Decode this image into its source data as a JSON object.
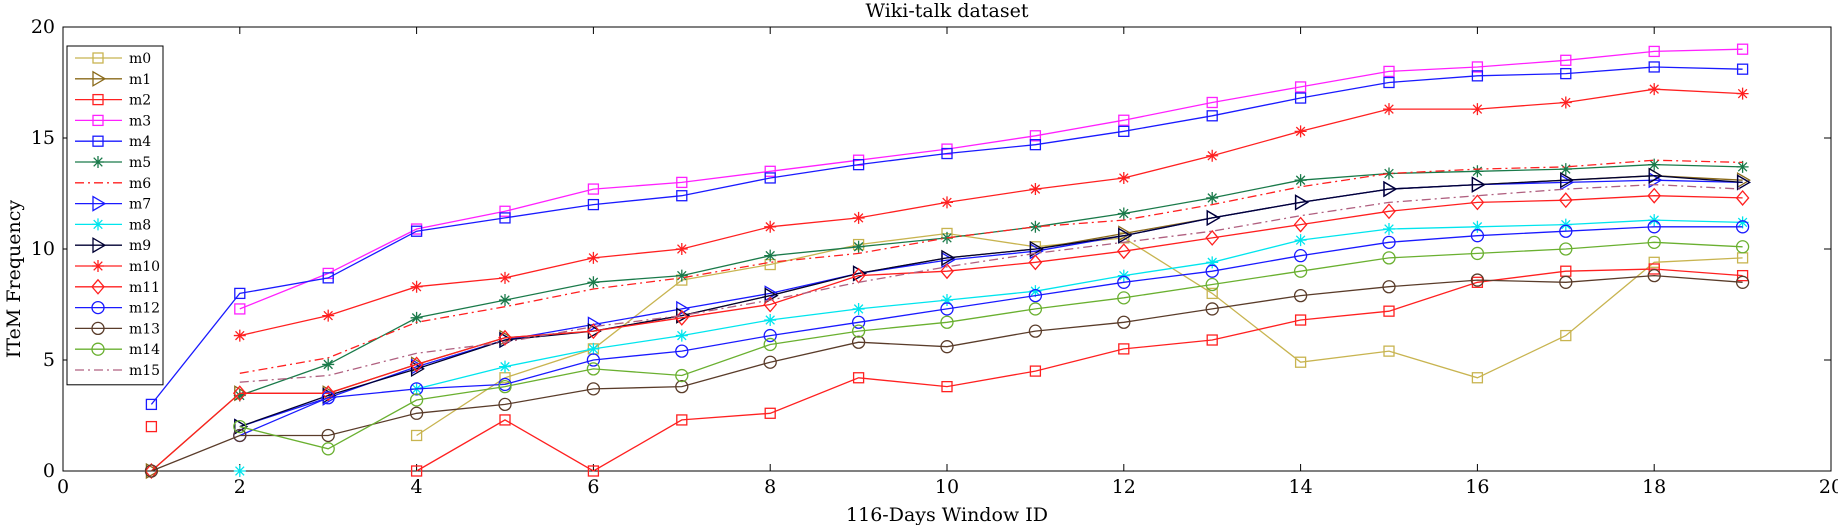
{
  "chart_data": {
    "type": "line",
    "title": "Wiki-talk dataset",
    "xlabel": "116-Days Window ID",
    "ylabel": "ITeM Frequency",
    "xlim": [
      0,
      20
    ],
    "ylim": [
      0,
      20
    ],
    "xticks": [
      0,
      2,
      4,
      6,
      8,
      10,
      12,
      14,
      16,
      18,
      20
    ],
    "yticks": [
      0,
      5,
      10,
      15,
      20
    ],
    "legend_position": "top-left",
    "series": [
      {
        "name": "m0",
        "color": "#c8b450",
        "marker": "square",
        "dash": "solid",
        "points": [
          [
            4,
            1.6
          ],
          [
            5,
            4.2
          ],
          [
            6,
            5.5
          ],
          [
            7,
            8.6
          ],
          [
            8,
            9.3
          ],
          [
            9,
            10.2
          ],
          [
            10,
            10.7
          ],
          [
            11,
            10.1
          ],
          [
            12,
            10.5
          ],
          [
            13,
            8.0
          ],
          [
            14,
            4.9
          ],
          [
            15,
            5.4
          ],
          [
            16,
            4.2
          ],
          [
            17,
            6.1
          ],
          [
            18,
            9.4
          ],
          [
            19,
            9.6
          ]
        ]
      },
      {
        "name": "m1",
        "color": "#8a6a1a",
        "marker": "tri-right",
        "dash": "solid",
        "points": [
          [
            1,
            0.0
          ],
          [
            2,
            3.5
          ],
          [
            3,
            3.5
          ],
          [
            4,
            4.8
          ],
          [
            5,
            6.0
          ],
          [
            6,
            6.3
          ],
          [
            7,
            7.0
          ],
          [
            8,
            7.9
          ],
          [
            9,
            8.9
          ],
          [
            10,
            9.6
          ],
          [
            11,
            10.0
          ],
          [
            12,
            10.7
          ],
          [
            13,
            11.4
          ],
          [
            14,
            12.1
          ],
          [
            15,
            12.7
          ],
          [
            16,
            12.9
          ],
          [
            17,
            13.1
          ],
          [
            18,
            13.3
          ],
          [
            19,
            13.1
          ]
        ]
      },
      {
        "name": "m2",
        "color": "#ff2020",
        "marker": "square",
        "dash": "solid",
        "points": [
          [
            1,
            2.0
          ],
          [
            null,
            null
          ],
          [
            4,
            0.0
          ],
          [
            5,
            2.3
          ],
          [
            6,
            0.0
          ],
          [
            7,
            2.3
          ],
          [
            8,
            2.6
          ],
          [
            9,
            4.2
          ],
          [
            10,
            3.8
          ],
          [
            11,
            4.5
          ],
          [
            12,
            5.5
          ],
          [
            13,
            5.9
          ],
          [
            14,
            6.8
          ],
          [
            15,
            7.2
          ],
          [
            16,
            8.5
          ],
          [
            17,
            9.0
          ],
          [
            18,
            9.1
          ],
          [
            19,
            8.8
          ]
        ]
      },
      {
        "name": "m3",
        "color": "#ff20ff",
        "marker": "square",
        "dash": "solid",
        "points": [
          [
            2,
            7.3
          ],
          [
            3,
            8.9
          ],
          [
            4,
            10.9
          ],
          [
            5,
            11.7
          ],
          [
            6,
            12.7
          ],
          [
            7,
            13.0
          ],
          [
            8,
            13.5
          ],
          [
            9,
            14.0
          ],
          [
            10,
            14.5
          ],
          [
            11,
            15.1
          ],
          [
            12,
            15.8
          ],
          [
            13,
            16.6
          ],
          [
            14,
            17.3
          ],
          [
            15,
            18.0
          ],
          [
            16,
            18.2
          ],
          [
            17,
            18.5
          ],
          [
            18,
            18.9
          ],
          [
            19,
            19.0
          ]
        ]
      },
      {
        "name": "m4",
        "color": "#1a1aff",
        "marker": "square",
        "dash": "solid",
        "points": [
          [
            1,
            3.0
          ],
          [
            2,
            8.0
          ],
          [
            3,
            8.7
          ],
          [
            4,
            10.8
          ],
          [
            5,
            11.4
          ],
          [
            6,
            12.0
          ],
          [
            7,
            12.4
          ],
          [
            8,
            13.2
          ],
          [
            9,
            13.8
          ],
          [
            10,
            14.3
          ],
          [
            11,
            14.7
          ],
          [
            12,
            15.3
          ],
          [
            13,
            16.0
          ],
          [
            14,
            16.8
          ],
          [
            15,
            17.5
          ],
          [
            16,
            17.8
          ],
          [
            17,
            17.9
          ],
          [
            18,
            18.2
          ],
          [
            19,
            18.1
          ]
        ]
      },
      {
        "name": "m5",
        "color": "#1a7a4a",
        "marker": "asterisk",
        "dash": "solid",
        "points": [
          [
            2,
            3.4
          ],
          [
            3,
            4.8
          ],
          [
            4,
            6.9
          ],
          [
            5,
            7.7
          ],
          [
            6,
            8.5
          ],
          [
            7,
            8.8
          ],
          [
            8,
            9.7
          ],
          [
            9,
            10.1
          ],
          [
            10,
            10.5
          ],
          [
            11,
            11.0
          ],
          [
            12,
            11.6
          ],
          [
            13,
            12.3
          ],
          [
            14,
            13.1
          ],
          [
            15,
            13.4
          ],
          [
            16,
            13.5
          ],
          [
            17,
            13.6
          ],
          [
            18,
            13.8
          ],
          [
            19,
            13.7
          ]
        ]
      },
      {
        "name": "m6",
        "color": "#ff2020",
        "marker": "none",
        "dash": "dashdot",
        "points": [
          [
            2,
            4.4
          ],
          [
            3,
            5.1
          ],
          [
            4,
            6.7
          ],
          [
            5,
            7.4
          ],
          [
            6,
            8.2
          ],
          [
            7,
            8.7
          ],
          [
            8,
            9.4
          ],
          [
            9,
            9.8
          ],
          [
            10,
            10.5
          ],
          [
            11,
            11.0
          ],
          [
            12,
            11.3
          ],
          [
            13,
            12.0
          ],
          [
            14,
            12.8
          ],
          [
            15,
            13.4
          ],
          [
            16,
            13.6
          ],
          [
            17,
            13.7
          ],
          [
            18,
            14.0
          ],
          [
            19,
            13.9
          ]
        ]
      },
      {
        "name": "m7",
        "color": "#1a1aff",
        "marker": "tri-right",
        "dash": "solid",
        "points": [
          [
            2,
            2.0
          ],
          [
            3,
            3.3
          ],
          [
            4,
            4.7
          ],
          [
            5,
            5.9
          ],
          [
            6,
            6.6
          ],
          [
            7,
            7.3
          ],
          [
            8,
            8.0
          ],
          [
            9,
            8.9
          ],
          [
            10,
            9.5
          ],
          [
            11,
            9.9
          ],
          [
            12,
            10.6
          ],
          [
            13,
            11.4
          ],
          [
            14,
            12.1
          ],
          [
            15,
            12.7
          ],
          [
            16,
            12.9
          ],
          [
            17,
            13.0
          ],
          [
            18,
            13.1
          ],
          [
            19,
            13.0
          ]
        ]
      },
      {
        "name": "m8",
        "color": "#00e5ee",
        "marker": "asterisk",
        "dash": "solid",
        "points": [
          [
            2,
            0.0
          ],
          [
            null,
            null
          ],
          [
            4,
            3.7
          ],
          [
            5,
            4.7
          ],
          [
            6,
            5.5
          ],
          [
            7,
            6.1
          ],
          [
            8,
            6.8
          ],
          [
            9,
            7.3
          ],
          [
            10,
            7.7
          ],
          [
            11,
            8.1
          ],
          [
            12,
            8.8
          ],
          [
            13,
            9.4
          ],
          [
            14,
            10.4
          ],
          [
            15,
            10.9
          ],
          [
            16,
            11.0
          ],
          [
            17,
            11.1
          ],
          [
            18,
            11.3
          ],
          [
            19,
            11.2
          ]
        ]
      },
      {
        "name": "m9",
        "color": "#000033",
        "marker": "tri-right",
        "dash": "solid",
        "points": [
          [
            2,
            2.0
          ],
          [
            3,
            3.4
          ],
          [
            4,
            4.6
          ],
          [
            5,
            5.9
          ],
          [
            6,
            6.3
          ],
          [
            7,
            7.0
          ],
          [
            8,
            7.9
          ],
          [
            9,
            8.9
          ],
          [
            10,
            9.6
          ],
          [
            11,
            10.0
          ],
          [
            12,
            10.6
          ],
          [
            13,
            11.4
          ],
          [
            14,
            12.1
          ],
          [
            15,
            12.7
          ],
          [
            16,
            12.9
          ],
          [
            17,
            13.1
          ],
          [
            18,
            13.3
          ],
          [
            19,
            13.0
          ]
        ]
      },
      {
        "name": "m10",
        "color": "#ff2020",
        "marker": "asterisk",
        "dash": "solid",
        "points": [
          [
            2,
            6.1
          ],
          [
            3,
            7.0
          ],
          [
            4,
            8.3
          ],
          [
            5,
            8.7
          ],
          [
            6,
            9.6
          ],
          [
            7,
            10.0
          ],
          [
            8,
            11.0
          ],
          [
            9,
            11.4
          ],
          [
            10,
            12.1
          ],
          [
            11,
            12.7
          ],
          [
            12,
            13.2
          ],
          [
            13,
            14.2
          ],
          [
            14,
            15.3
          ],
          [
            15,
            16.3
          ],
          [
            16,
            16.3
          ],
          [
            17,
            16.6
          ],
          [
            18,
            17.2
          ],
          [
            19,
            17.0
          ]
        ]
      },
      {
        "name": "m11",
        "color": "#ff2020",
        "marker": "diamond",
        "dash": "solid",
        "points": [
          [
            1,
            0.0
          ],
          [
            2,
            3.5
          ],
          [
            3,
            3.5
          ],
          [
            4,
            4.8
          ],
          [
            5,
            6.0
          ],
          [
            6,
            6.3
          ],
          [
            7,
            6.9
          ],
          [
            8,
            7.5
          ],
          [
            9,
            8.8
          ],
          [
            10,
            9.0
          ],
          [
            11,
            9.4
          ],
          [
            12,
            9.9
          ],
          [
            13,
            10.5
          ],
          [
            14,
            11.1
          ],
          [
            15,
            11.7
          ],
          [
            16,
            12.1
          ],
          [
            17,
            12.2
          ],
          [
            18,
            12.4
          ],
          [
            19,
            12.3
          ]
        ]
      },
      {
        "name": "m12",
        "color": "#1a1aff",
        "marker": "circle",
        "dash": "solid",
        "points": [
          [
            2,
            1.6
          ],
          [
            3,
            3.3
          ],
          [
            4,
            3.7
          ],
          [
            5,
            3.9
          ],
          [
            6,
            5.0
          ],
          [
            7,
            5.4
          ],
          [
            8,
            6.1
          ],
          [
            9,
            6.7
          ],
          [
            10,
            7.3
          ],
          [
            11,
            7.9
          ],
          [
            12,
            8.5
          ],
          [
            13,
            9.0
          ],
          [
            14,
            9.7
          ],
          [
            15,
            10.3
          ],
          [
            16,
            10.6
          ],
          [
            17,
            10.8
          ],
          [
            18,
            11.0
          ],
          [
            19,
            11.0
          ]
        ]
      },
      {
        "name": "m13",
        "color": "#5a3c2a",
        "marker": "circle",
        "dash": "solid",
        "points": [
          [
            1,
            0.0
          ],
          [
            2,
            1.6
          ],
          [
            3,
            1.6
          ],
          [
            4,
            2.6
          ],
          [
            5,
            3.0
          ],
          [
            6,
            3.7
          ],
          [
            7,
            3.8
          ],
          [
            8,
            4.9
          ],
          [
            9,
            5.8
          ],
          [
            10,
            5.6
          ],
          [
            11,
            6.3
          ],
          [
            12,
            6.7
          ],
          [
            13,
            7.3
          ],
          [
            14,
            7.9
          ],
          [
            15,
            8.3
          ],
          [
            16,
            8.6
          ],
          [
            17,
            8.5
          ],
          [
            18,
            8.8
          ],
          [
            19,
            8.5
          ]
        ]
      },
      {
        "name": "m14",
        "color": "#6ab030",
        "marker": "circle",
        "dash": "solid",
        "points": [
          [
            2,
            2.0
          ],
          [
            3,
            1.0
          ],
          [
            4,
            3.2
          ],
          [
            5,
            3.8
          ],
          [
            6,
            4.6
          ],
          [
            7,
            4.3
          ],
          [
            8,
            5.7
          ],
          [
            9,
            6.3
          ],
          [
            10,
            6.7
          ],
          [
            11,
            7.3
          ],
          [
            12,
            7.8
          ],
          [
            13,
            8.4
          ],
          [
            14,
            9.0
          ],
          [
            15,
            9.6
          ],
          [
            16,
            9.8
          ],
          [
            17,
            10.0
          ],
          [
            18,
            10.3
          ],
          [
            19,
            10.1
          ]
        ]
      },
      {
        "name": "m15",
        "color": "#b06080",
        "marker": "none",
        "dash": "dashdot",
        "points": [
          [
            2,
            4.0
          ],
          [
            3,
            4.3
          ],
          [
            4,
            5.3
          ],
          [
            5,
            5.8
          ],
          [
            6,
            6.5
          ],
          [
            7,
            7.0
          ],
          [
            8,
            7.7
          ],
          [
            9,
            8.5
          ],
          [
            10,
            9.2
          ],
          [
            11,
            9.8
          ],
          [
            12,
            10.3
          ],
          [
            13,
            10.8
          ],
          [
            14,
            11.5
          ],
          [
            15,
            12.1
          ],
          [
            16,
            12.4
          ],
          [
            17,
            12.7
          ],
          [
            18,
            12.9
          ],
          [
            19,
            12.7
          ]
        ]
      }
    ]
  }
}
